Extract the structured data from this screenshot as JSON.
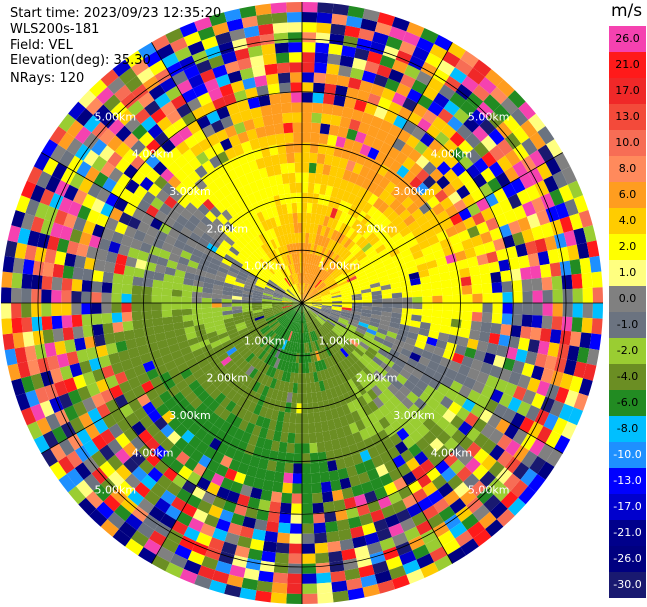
{
  "header": {
    "start_time": "Start time: 2023/09/23 12:35:20",
    "instrument": "WLS200s-181",
    "field": "Field: VEL",
    "elevation": "Elevation(deg): 35.30",
    "nrays": "NRays: 120"
  },
  "colorbar": {
    "title": "m/s",
    "levels": [
      {
        "label": "26.0",
        "color": "#f542b0"
      },
      {
        "label": "21.0",
        "color": "#ff1a1a"
      },
      {
        "label": "17.0",
        "color": "#f02828"
      },
      {
        "label": "13.0",
        "color": "#f34a3a"
      },
      {
        "label": "10.0",
        "color": "#f76d55"
      },
      {
        "label": "8.0",
        "color": "#ff8a5c"
      },
      {
        "label": "6.0",
        "color": "#ff9d1f"
      },
      {
        "label": "4.0",
        "color": "#ffcc00"
      },
      {
        "label": "2.0",
        "color": "#ffff00"
      },
      {
        "label": "1.0",
        "color": "#ffff80"
      },
      {
        "label": "0.0",
        "color": "#808080"
      },
      {
        "label": "-1.0",
        "color": "#6b7380"
      },
      {
        "label": "-2.0",
        "color": "#9acd32"
      },
      {
        "label": "-4.0",
        "color": "#6b8e23"
      },
      {
        "label": "-6.0",
        "color": "#228b22"
      },
      {
        "label": "-8.0",
        "color": "#00bfff"
      },
      {
        "label": "-10.0",
        "color": "#1e90ff"
      },
      {
        "label": "-13.0",
        "color": "#0000ff"
      },
      {
        "label": "-17.0",
        "color": "#0000cd"
      },
      {
        "label": "-21.0",
        "color": "#00008b"
      },
      {
        "label": "-26.0",
        "color": "#000080"
      },
      {
        "label": "-30.0",
        "color": "#191970"
      }
    ]
  },
  "chart_data": {
    "type": "heatmap",
    "projection": "polar",
    "field": "VEL",
    "units": "m/s",
    "nrays": 120,
    "range_rings_km": [
      1.0,
      2.0,
      3.0,
      4.0,
      5.0
    ],
    "range_labels": [
      "1.00km",
      "2.00km",
      "3.00km",
      "4.00km",
      "5.00km"
    ],
    "max_range_km": 5.7,
    "range_gates": 30,
    "spokes_deg": [
      0,
      30,
      60,
      90,
      120,
      150,
      180,
      210,
      240,
      270,
      300,
      330
    ],
    "vmin": -30.0,
    "vmax": 26.0,
    "structure": "Inner ~3.5 km shows coherent velocity: yellow/orange (+2 to +6 m/s) to the north and north-east, gray (~0 m/s) bands, and olive/green (-2 to -6 m/s) to the south and south-west; outer ranges are noisy mixed colors."
  }
}
